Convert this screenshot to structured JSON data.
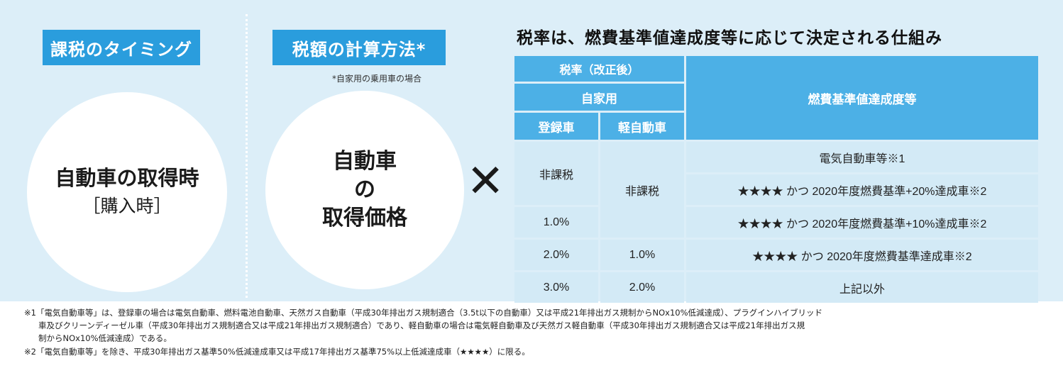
{
  "section1": {
    "tag": "課税のタイミング",
    "circle_line1": "自動車の取得時",
    "circle_line2": "［購入時］"
  },
  "section2": {
    "tag": "税額の計算方法*",
    "note": "*自家用の乗用車の場合",
    "circle_line1": "自動車",
    "circle_line2": "の",
    "circle_line3": "取得価格"
  },
  "operator": "✕",
  "table": {
    "title": "税率は、燃費基準値達成度等に応じて決定される仕組み",
    "header_rate": "税率（改正後）",
    "header_private": "自家用",
    "header_registered": "登録車",
    "header_kei": "軽自動車",
    "header_criteria": "燃費基準値達成度等",
    "rows": [
      {
        "registered": "非課税",
        "kei": "非課税",
        "criteria": "電気自動車等※1"
      },
      {
        "criteria": "★★★★ かつ 2020年度燃費基準+20%達成車※2"
      },
      {
        "registered": "1.0%",
        "criteria": "★★★★ かつ 2020年度燃費基準+10%達成車※2"
      },
      {
        "registered": "2.0%",
        "kei": "1.0%",
        "criteria": "★★★★ かつ 2020年度燃費基準達成車※2"
      },
      {
        "registered": "3.0%",
        "kei": "2.0%",
        "criteria": "上記以外"
      }
    ]
  },
  "footnotes": {
    "note1_line1": "※1「電気自動車等」は、登録車の場合は電気自動車、燃料電池自動車、天然ガス自動車（平成30年排出ガス規制適合（3.5t以下の自動車）又は平成21年排出ガス規制からNOx10%低減達成）、プラグインハイブリッド",
    "note1_line2": "車及びクリーンディーゼル車（平成30年排出ガス規制適合又は平成21年排出ガス規制適合）であり、軽自動車の場合は電気軽自動車及び天然ガス軽自動車（平成30年排出ガス規制適合又は平成21年排出ガス規",
    "note1_line3": "制からNOx10%低減達成）である。",
    "note2": "※2「電気自動車等」を除き、平成30年排出ガス基準50%低減達成車又は平成17年排出ガス基準75%以上低減達成車（★★★★）に限る。"
  }
}
